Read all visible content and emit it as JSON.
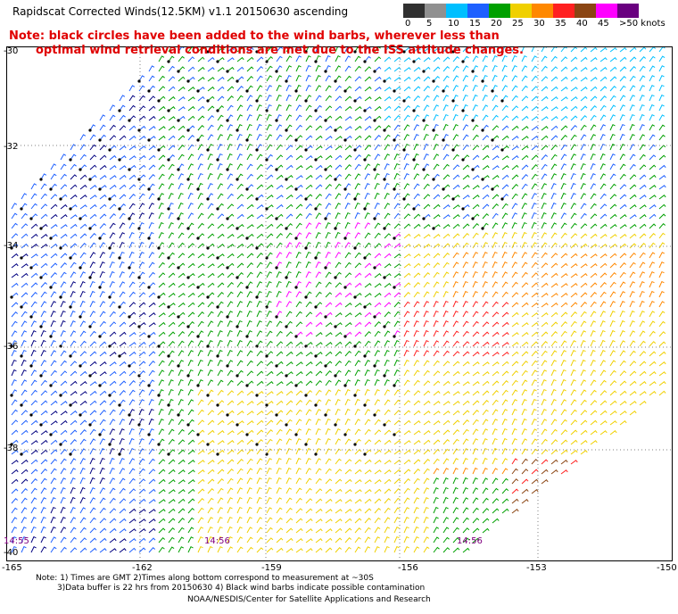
{
  "title": "Rapidscat Corrected Winds(12.5KM) v1.1 20150630 ascending",
  "note": {
    "line1": "Note: black circles have been added to the wind barbs, wherever less than",
    "line2": "optimal wind retrieval conditions are met due to the ISS attitude changes."
  },
  "colorbar": {
    "labels": [
      "0",
      "5",
      "10",
      "15",
      "20",
      "25",
      "30",
      "35",
      "40",
      "45",
      ">50 knots"
    ],
    "colors": [
      "#303030",
      "#909090",
      "#00bfff",
      "#1e60ff",
      "#00a000",
      "#f0d000",
      "#ff8800",
      "#ff2020",
      "#8b4513",
      "#ff00ff",
      "#6a0080"
    ]
  },
  "map": {
    "lat_labels": [
      "-30",
      "-32",
      "-34",
      "-36",
      "-38",
      "-40"
    ],
    "lon_labels": [
      "-165",
      "-162",
      "-159",
      "-156",
      "-153",
      "-150"
    ],
    "time_labels": [
      "14:55",
      "14:56",
      "14:56"
    ],
    "grid_color": "#808080"
  },
  "footer": {
    "line1": "Note: 1) Times are GMT 2)Times along bottom correspond to measurement at ~30S",
    "line2": "3)Data buffer is 22 hrs from 20150630 4) Black wind barbs indicate possible contamination",
    "line3": "NOAA/NESDIS/Center for Satellite Applications and Research"
  }
}
